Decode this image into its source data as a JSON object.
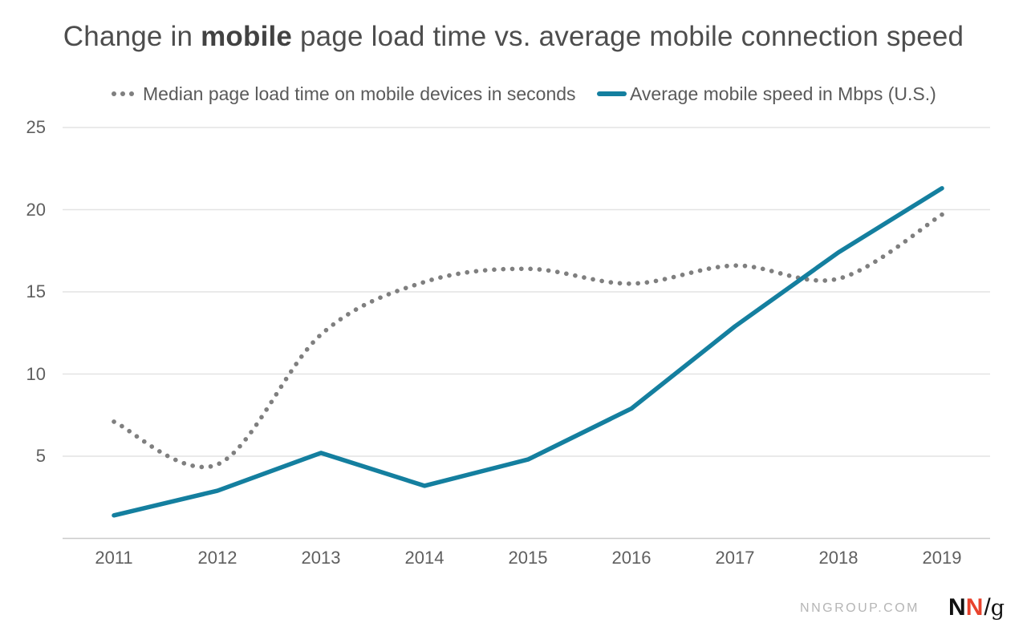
{
  "title_parts": {
    "prefix": "Change in ",
    "bold": "mobile",
    "suffix": " page load time vs. average mobile connection speed"
  },
  "chart_data": {
    "type": "line",
    "title": "Change in mobile page load time vs. average mobile connection speed",
    "x": [
      2011,
      2012,
      2013,
      2014,
      2015,
      2016,
      2017,
      2018,
      2019
    ],
    "series": [
      {
        "name": "Median page load time on mobile devices in seconds",
        "style": "dotted",
        "color": "#7f7f7f",
        "values": [
          7.1,
          4.5,
          12.4,
          15.6,
          16.4,
          15.5,
          16.6,
          15.8,
          19.7
        ]
      },
      {
        "name": "Average mobile speed in Mbps (U.S.)",
        "style": "solid",
        "color": "#147f9f",
        "values": [
          1.4,
          2.9,
          5.2,
          3.2,
          4.8,
          7.9,
          12.9,
          17.4,
          21.3
        ]
      }
    ],
    "xlabel": "",
    "ylabel": "",
    "ylim": [
      0,
      25
    ],
    "yticks": [
      5,
      10,
      15,
      20,
      25
    ],
    "grid": true,
    "legend_position": "top",
    "colors": {
      "gridline": "#e4e4e4",
      "axis_line": "#cbcbcb",
      "tick_label": "#5f5f5f",
      "title": "#4d4d4d",
      "legend_text": "#5a5a5a"
    }
  },
  "footer": {
    "site": "NNGROUP.COM",
    "logo": {
      "n1": "N",
      "n2": "N",
      "slash": "/",
      "g": "g"
    },
    "logo_red": "#e8432d"
  }
}
